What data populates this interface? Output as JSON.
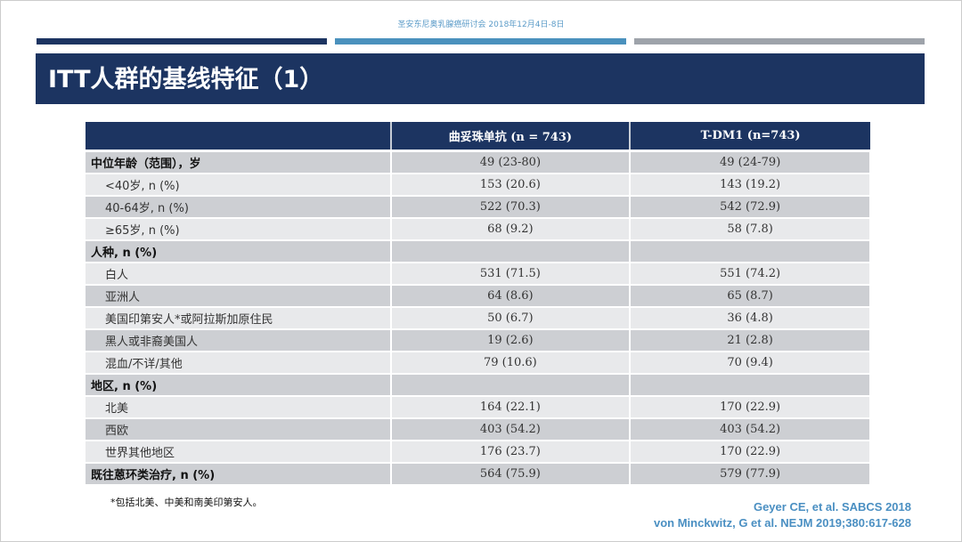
{
  "conference": "圣安东尼奥乳腺癌研讨会 2018年12月4日-8日",
  "colors": {
    "bar1": "#1c3461",
    "bar2": "#4a91bd",
    "bar3": "#9ea3aa",
    "title_bg": "#1c3461"
  },
  "title": "ITT人群的基线特征（1）",
  "table": {
    "headers": [
      "",
      "曲妥珠单抗 (n = 743)",
      "T-DM1 (n=743)"
    ],
    "rows": [
      {
        "label": "中位年龄（范围），岁",
        "type": "cat",
        "a": "49 (23-80)",
        "b": "49 (24-79)"
      },
      {
        "label": "<40岁, n (%)",
        "type": "sub",
        "a": "153 (20.6)",
        "b": "143 (19.2)"
      },
      {
        "label": "40-64岁, n (%)",
        "type": "sub",
        "a": "522 (70.3)",
        "b": "542 (72.9)"
      },
      {
        "label": "≥65岁, n (%)",
        "type": "sub",
        "a": "68 (9.2)",
        "b": "58 (7.8)"
      },
      {
        "label": "人种, n (%)",
        "type": "cat",
        "a": "",
        "b": ""
      },
      {
        "label": "白人",
        "type": "sub",
        "a": "531 (71.5)",
        "b": "551 (74.2)"
      },
      {
        "label": "亚洲人",
        "type": "sub",
        "a": "64 (8.6)",
        "b": "65 (8.7)"
      },
      {
        "label": "美国印第安人*或阿拉斯加原住民",
        "type": "sub",
        "a": "50 (6.7)",
        "b": "36 (4.8)"
      },
      {
        "label": "黑人或非裔美国人",
        "type": "sub",
        "a": "19 (2.6)",
        "b": "21 (2.8)"
      },
      {
        "label": "混血/不详/其他",
        "type": "sub",
        "a": "79 (10.6)",
        "b": "70 (9.4)"
      },
      {
        "label": "地区, n (%)",
        "type": "cat",
        "a": "",
        "b": ""
      },
      {
        "label": "北美",
        "type": "sub",
        "a": "164 (22.1)",
        "b": "170 (22.9)"
      },
      {
        "label": "西欧",
        "type": "sub",
        "a": "403 (54.2)",
        "b": "403 (54.2)"
      },
      {
        "label": "世界其他地区",
        "type": "sub",
        "a": "176 (23.7)",
        "b": "170 (22.9)"
      },
      {
        "label": "既往蒽环类治疗, n (%)",
        "type": "cat",
        "a": "564 (75.9)",
        "b": "579 (77.9)"
      }
    ]
  },
  "footnote": "*包括北美、中美和南美印第安人。",
  "references": [
    "Geyer CE, et al.  SABCS 2018",
    "von Minckwitz, G et al. NEJM 2019;380:617-628"
  ]
}
